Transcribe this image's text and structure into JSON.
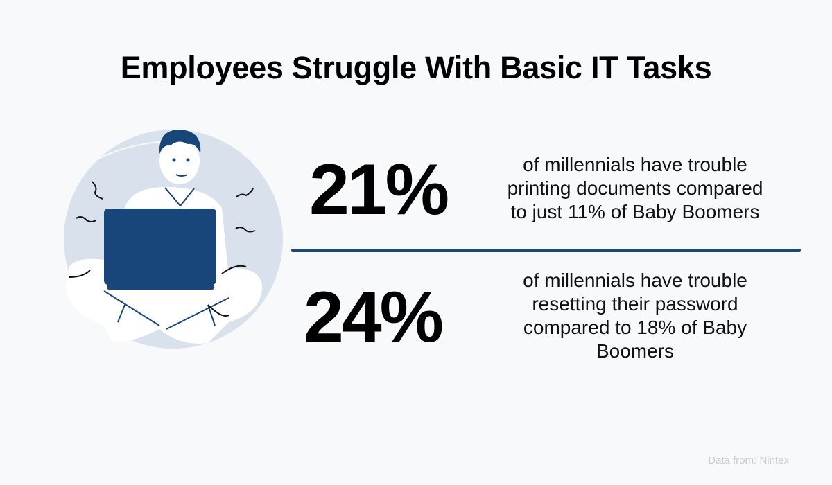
{
  "title": "Employees Struggle With Basic IT Tasks",
  "stats": [
    {
      "value": "21%",
      "lines": [
        "of millennials have trouble",
        "printing documents compared",
        "to just 11% of Baby Boomers"
      ]
    },
    {
      "value": "24%",
      "lines": [
        "of millennials have trouble",
        "resetting their password",
        "compared to 18% of Baby",
        "Boomers"
      ]
    }
  ],
  "source": "Data from: Nintex",
  "colors": {
    "accent": "#18467a",
    "circle": "#d9e1ec",
    "background": "#f8f9fb"
  },
  "illustration": "man-sitting-cross-legged-with-laptop"
}
